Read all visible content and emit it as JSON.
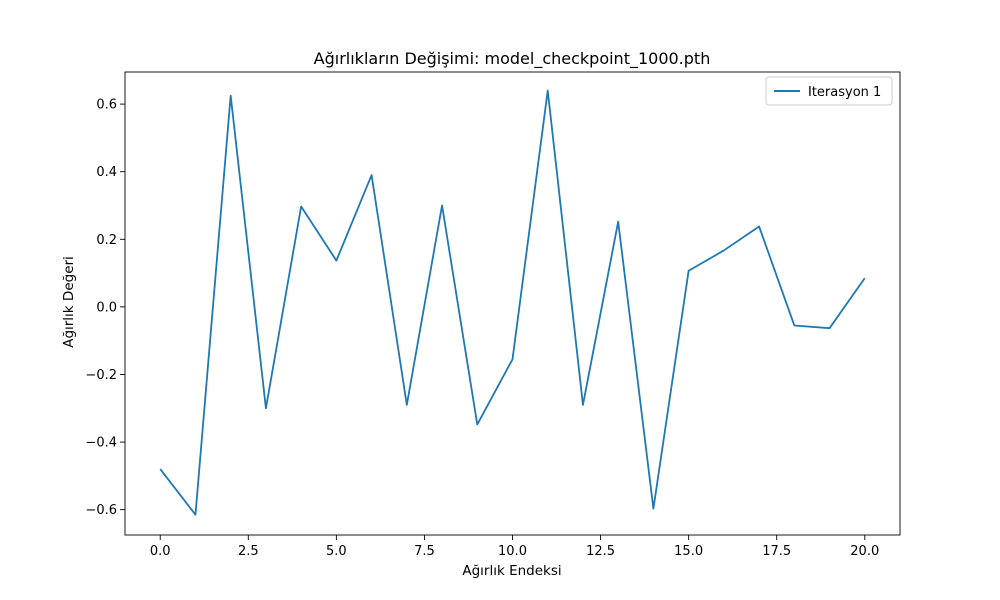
{
  "chart_data": {
    "type": "line",
    "title": "Ağırlıkların Değişimi: model_checkpoint_1000.pth",
    "xlabel": "Ağırlık Endeksi",
    "ylabel": "Ağırlık Değeri",
    "xlim": [
      -1.0,
      21.0
    ],
    "ylim": [
      -0.675,
      0.695
    ],
    "xticks": [
      0.0,
      2.5,
      5.0,
      7.5,
      10.0,
      12.5,
      15.0,
      17.5,
      20.0
    ],
    "xtick_labels": [
      "0.0",
      "2.5",
      "5.0",
      "7.5",
      "10.0",
      "12.5",
      "15.0",
      "17.5",
      "20.0"
    ],
    "yticks": [
      -0.6,
      -0.4,
      -0.2,
      0.0,
      0.2,
      0.4,
      0.6
    ],
    "ytick_labels": [
      "−0.6",
      "−0.4",
      "−0.2",
      "0.0",
      "0.2",
      "0.4",
      "0.6"
    ],
    "grid": false,
    "legend_position": "top-right",
    "series": [
      {
        "name": "Iterasyon 1",
        "color": "#1f77b4",
        "x": [
          0,
          1,
          2,
          3,
          4,
          5,
          6,
          7,
          8,
          9,
          10,
          11,
          12,
          13,
          14,
          15,
          16,
          17,
          18,
          19,
          20
        ],
        "values": [
          -0.48,
          -0.615,
          0.625,
          -0.3,
          0.297,
          0.137,
          0.39,
          -0.29,
          0.3,
          -0.348,
          -0.155,
          0.64,
          -0.29,
          0.252,
          -0.597,
          0.107,
          0.167,
          0.238,
          -0.055,
          -0.063,
          0.085
        ]
      }
    ]
  }
}
